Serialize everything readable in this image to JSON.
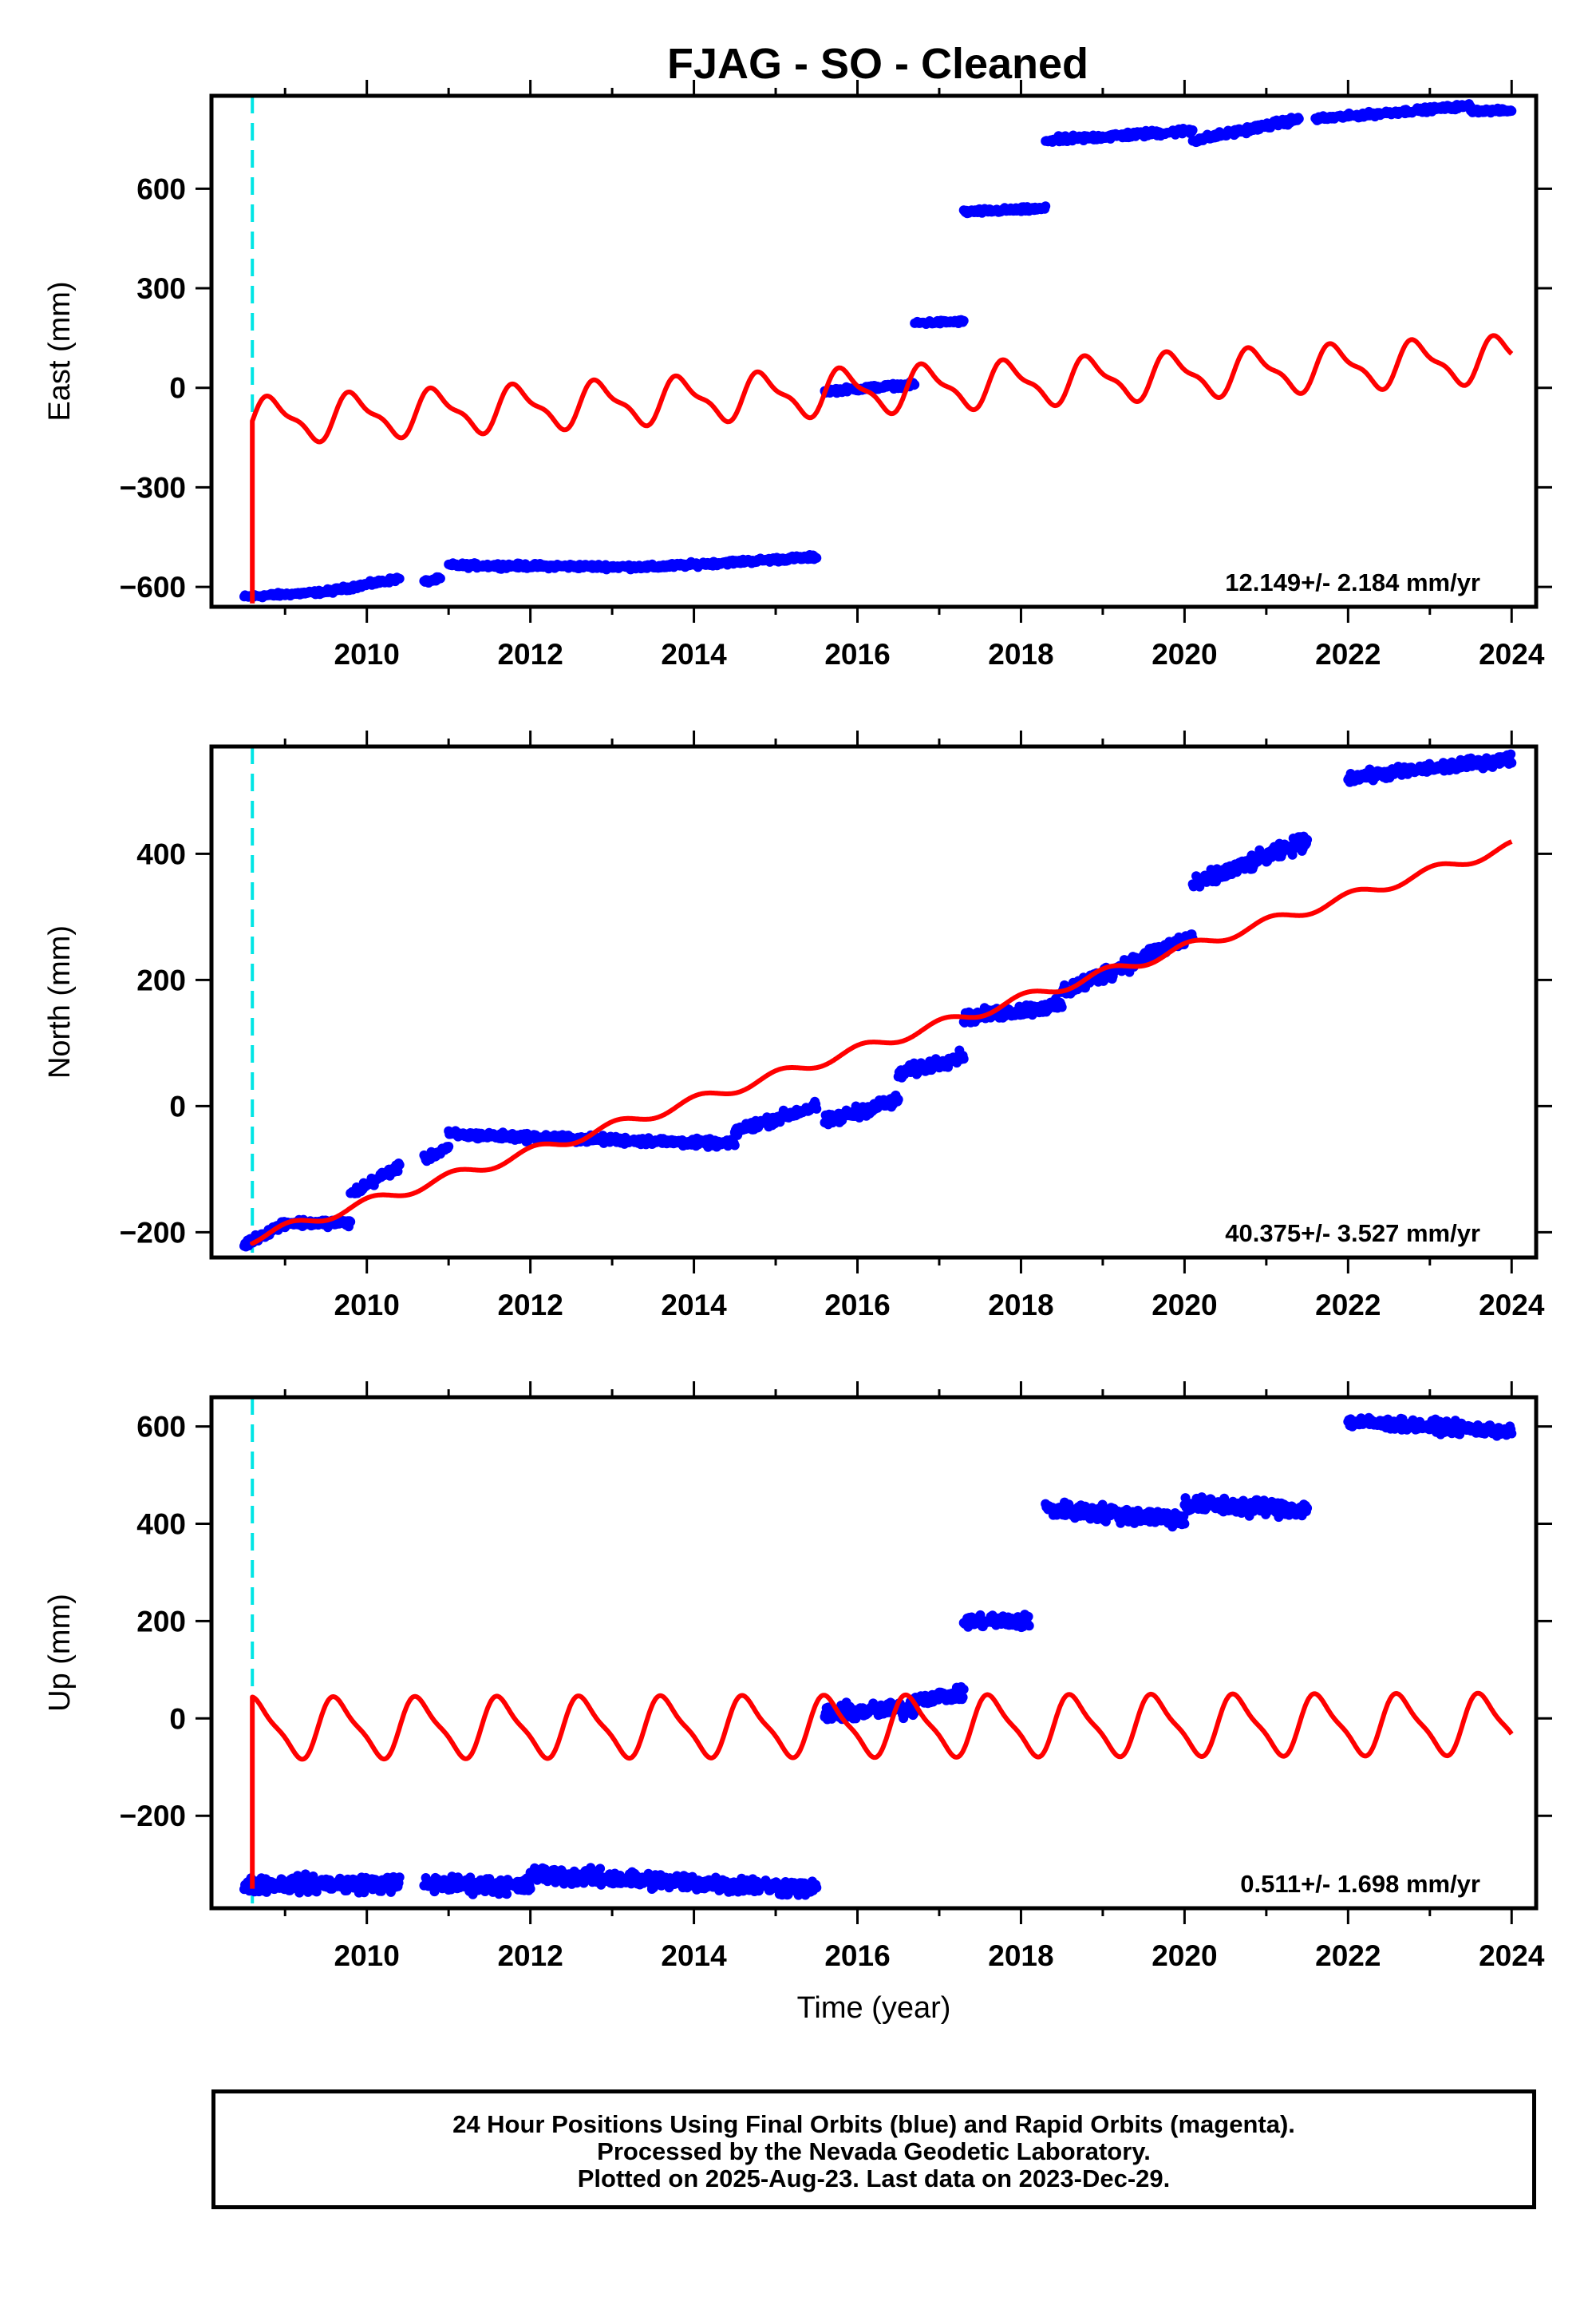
{
  "title": "FJAG  - SO - Cleaned",
  "colors": {
    "data": "#0000ff",
    "model": "#ff0000",
    "event": "#00e5e5",
    "frame": "#000000"
  },
  "chart_data": [
    {
      "type": "scatter",
      "component": "east",
      "ylabel": "East (mm)",
      "xlabel": "",
      "xlim": [
        2008.1,
        2024.3
      ],
      "ylim": [
        -660,
        880
      ],
      "xticks": [
        2010,
        2012,
        2014,
        2016,
        2018,
        2020,
        2022,
        2024
      ],
      "yticks": [
        -600,
        -300,
        0,
        300,
        600
      ],
      "ytick_labels": [
        "−600",
        "−300",
        "0",
        "300",
        "600"
      ],
      "rate_text": "12.149+/- 2.184 mm/yr",
      "event_line_x": 2008.6,
      "data_segments": [
        {
          "x0": 2008.5,
          "x1": 2009.5,
          "y0": -630,
          "y1": -615,
          "noise": 5
        },
        {
          "x0": 2009.5,
          "x1": 2010.4,
          "y0": -615,
          "y1": -575,
          "noise": 6
        },
        {
          "x0": 2010.7,
          "x1": 2010.9,
          "y0": -585,
          "y1": -575,
          "noise": 5
        },
        {
          "x0": 2011.0,
          "x1": 2013.5,
          "y0": -535,
          "y1": -540,
          "noise": 6
        },
        {
          "x0": 2013.5,
          "x1": 2015.5,
          "y0": -540,
          "y1": -510,
          "noise": 6
        },
        {
          "x0": 2015.6,
          "x1": 2016.7,
          "y0": -10,
          "y1": 10,
          "noise": 6
        },
        {
          "x0": 2016.7,
          "x1": 2017.3,
          "y0": 195,
          "y1": 200,
          "noise": 5
        },
        {
          "x0": 2017.3,
          "x1": 2018.3,
          "y0": 530,
          "y1": 540,
          "noise": 6
        },
        {
          "x0": 2018.3,
          "x1": 2020.1,
          "y0": 745,
          "y1": 775,
          "noise": 8
        },
        {
          "x0": 2020.1,
          "x1": 2021.4,
          "y0": 745,
          "y1": 810,
          "noise": 8
        },
        {
          "x0": 2021.6,
          "x1": 2023.5,
          "y0": 810,
          "y1": 850,
          "noise": 6
        },
        {
          "x0": 2023.5,
          "x1": 2024.0,
          "y0": 835,
          "y1": 835,
          "noise": 5
        }
      ],
      "model": {
        "x0": 2008.6,
        "y_start": -650,
        "y0": -100,
        "rate": 12.149,
        "amp": 62,
        "amp2": 22,
        "phase": 0.4
      }
    },
    {
      "type": "scatter",
      "component": "north",
      "ylabel": "North (mm)",
      "xlabel": "",
      "xlim": [
        2008.1,
        2024.3
      ],
      "ylim": [
        -240,
        570
      ],
      "xticks": [
        2010,
        2012,
        2014,
        2016,
        2018,
        2020,
        2022,
        2024
      ],
      "yticks": [
        -200,
        0,
        200,
        400
      ],
      "ytick_labels": [
        "−200",
        "0",
        "200",
        "400"
      ],
      "rate_text": "40.375+/- 3.527 mm/yr",
      "event_line_x": 2008.6,
      "data_segments": [
        {
          "x0": 2008.5,
          "x1": 2009.0,
          "y0": -220,
          "y1": -185,
          "noise": 5
        },
        {
          "x0": 2009.0,
          "x1": 2009.8,
          "y0": -185,
          "y1": -185,
          "noise": 5
        },
        {
          "x0": 2009.8,
          "x1": 2010.4,
          "y0": -140,
          "y1": -95,
          "noise": 6
        },
        {
          "x0": 2010.7,
          "x1": 2011.0,
          "y0": -85,
          "y1": -65,
          "noise": 5
        },
        {
          "x0": 2011.0,
          "x1": 2014.5,
          "y0": -45,
          "y1": -60,
          "noise": 5
        },
        {
          "x0": 2014.5,
          "x1": 2015.5,
          "y0": -40,
          "y1": 0,
          "noise": 7
        },
        {
          "x0": 2015.6,
          "x1": 2016.5,
          "y0": -25,
          "y1": 10,
          "noise": 8
        },
        {
          "x0": 2016.5,
          "x1": 2017.3,
          "y0": 50,
          "y1": 80,
          "noise": 8
        },
        {
          "x0": 2017.3,
          "x1": 2018.5,
          "y0": 140,
          "y1": 160,
          "noise": 8
        },
        {
          "x0": 2018.5,
          "x1": 2020.1,
          "y0": 180,
          "y1": 270,
          "noise": 10
        },
        {
          "x0": 2020.1,
          "x1": 2021.5,
          "y0": 350,
          "y1": 420,
          "noise": 10
        },
        {
          "x0": 2022.0,
          "x1": 2024.0,
          "y0": 520,
          "y1": 550,
          "noise": 7
        }
      ],
      "model": {
        "x0": 2008.6,
        "y_start": -215,
        "y0": -210,
        "rate": 40.375,
        "amp": 8,
        "amp2": 0,
        "phase": 0.2
      }
    },
    {
      "type": "scatter",
      "component": "up",
      "ylabel": "Up (mm)",
      "xlabel": "Time (year)",
      "xlim": [
        2008.1,
        2024.3
      ],
      "ylim": [
        -390,
        660
      ],
      "xticks": [
        2010,
        2012,
        2014,
        2016,
        2018,
        2020,
        2022,
        2024
      ],
      "yticks": [
        -200,
        0,
        200,
        400,
        600
      ],
      "ytick_labels": [
        "−200",
        "0",
        "200",
        "400",
        "600"
      ],
      "rate_text": "0.511+/- 1.698 mm/yr",
      "event_line_x": 2008.6,
      "data_segments": [
        {
          "x0": 2008.5,
          "x1": 2010.4,
          "y0": -340,
          "y1": -340,
          "noise": 14
        },
        {
          "x0": 2010.7,
          "x1": 2012.0,
          "y0": -340,
          "y1": -345,
          "noise": 14
        },
        {
          "x0": 2012.0,
          "x1": 2015.5,
          "y0": -320,
          "y1": -350,
          "noise": 14
        },
        {
          "x0": 2015.6,
          "x1": 2016.7,
          "y0": 10,
          "y1": 20,
          "noise": 14
        },
        {
          "x0": 2016.7,
          "x1": 2017.3,
          "y0": 40,
          "y1": 50,
          "noise": 10
        },
        {
          "x0": 2017.3,
          "x1": 2018.1,
          "y0": 200,
          "y1": 200,
          "noise": 12
        },
        {
          "x0": 2018.3,
          "x1": 2020.0,
          "y0": 430,
          "y1": 410,
          "noise": 14
        },
        {
          "x0": 2020.0,
          "x1": 2021.5,
          "y0": 440,
          "y1": 430,
          "noise": 14
        },
        {
          "x0": 2022.0,
          "x1": 2024.0,
          "y0": 610,
          "y1": 590,
          "noise": 10
        }
      ],
      "model": {
        "x0": 2008.6,
        "y_start": -350,
        "y0": -20,
        "rate": 0.511,
        "amp": 58,
        "amp2": 15,
        "phase": 0.6
      }
    }
  ],
  "footer": {
    "line1": "24 Hour Positions Using Final Orbits (blue) and Rapid Orbits (magenta).",
    "line2": "Processed by the Nevada Geodetic Laboratory.",
    "line3": "Plotted on 2025-Aug-23. Last data on 2023-Dec-29."
  }
}
